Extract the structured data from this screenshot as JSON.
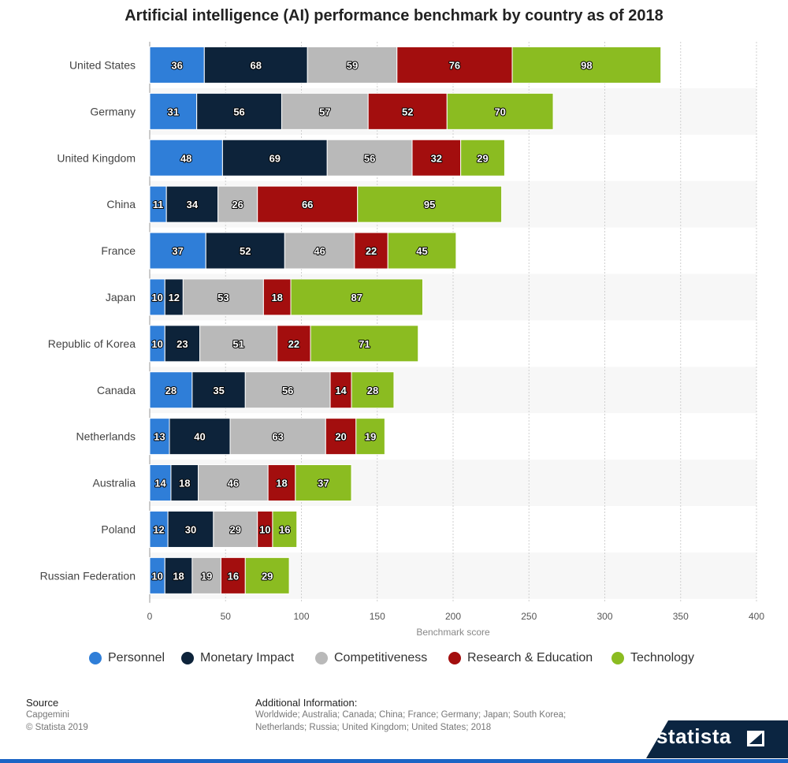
{
  "title": "Artificial intelligence (AI) performance benchmark by country as of 2018",
  "legend": [
    {
      "label": "Personnel",
      "color": "#2f7ed8"
    },
    {
      "label": "Monetary Impact",
      "color": "#0d233a"
    },
    {
      "label": "Competitiveness",
      "color": "#b9b9b9"
    },
    {
      "label": "Research & Education",
      "color": "#a30e0e"
    },
    {
      "label": "Technology",
      "color": "#8bbc21"
    }
  ],
  "footer": {
    "source_heading": "Source",
    "source_name": "Capgemini",
    "copyright": "© Statista 2019",
    "additional_heading": "Additional Information:",
    "additional_text": "Worldwide; Australia; Canada; China; France; Germany; Japan; South Korea; Netherlands; Russia; United Kingdom; United States; 2018",
    "brand": "statista"
  },
  "chart_data": {
    "type": "bar",
    "orientation": "horizontal",
    "stacked": true,
    "title": "Artificial intelligence (AI) performance benchmark by country as of 2018",
    "xlabel": "Benchmark score",
    "ylabel": "",
    "xlim": [
      0,
      400
    ],
    "x_ticks": [
      0,
      50,
      100,
      150,
      200,
      250,
      300,
      350,
      400
    ],
    "grid": true,
    "legend_position": "bottom",
    "categories": [
      "United States",
      "Germany",
      "United Kingdom",
      "China",
      "France",
      "Japan",
      "Republic of Korea",
      "Canada",
      "Netherlands",
      "Australia",
      "Poland",
      "Russian Federation"
    ],
    "series": [
      {
        "name": "Personnel",
        "color": "#2f7ed8",
        "values": [
          36,
          31,
          48,
          11,
          37,
          10,
          10,
          28,
          13,
          14,
          12,
          10
        ]
      },
      {
        "name": "Monetary Impact",
        "color": "#0d233a",
        "values": [
          68,
          56,
          69,
          34,
          52,
          12,
          23,
          35,
          40,
          18,
          30,
          18
        ]
      },
      {
        "name": "Competitiveness",
        "color": "#b9b9b9",
        "values": [
          59,
          57,
          56,
          26,
          46,
          53,
          51,
          56,
          63,
          46,
          29,
          19
        ]
      },
      {
        "name": "Research & Education",
        "color": "#a30e0e",
        "values": [
          76,
          52,
          32,
          66,
          22,
          18,
          22,
          14,
          20,
          18,
          10,
          16
        ]
      },
      {
        "name": "Technology",
        "color": "#8bbc21",
        "values": [
          98,
          70,
          29,
          95,
          45,
          87,
          71,
          28,
          19,
          37,
          16,
          29
        ]
      }
    ]
  }
}
